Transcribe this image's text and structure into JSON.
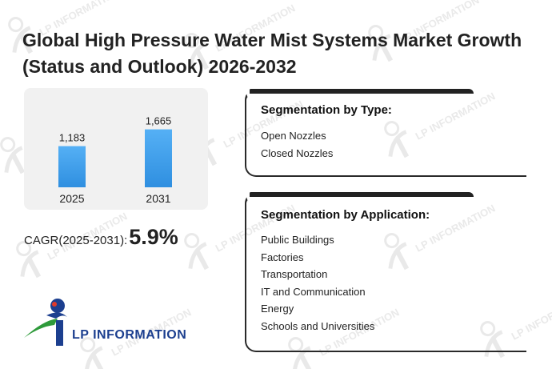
{
  "title": "Global High Pressure Water Mist Systems Market Growth (Status and Outlook) 2026-2032",
  "watermark_text": "LP INFORMATION",
  "chart_data": {
    "type": "bar",
    "categories": [
      "2025",
      "2031"
    ],
    "values": [
      1183,
      1665
    ],
    "value_labels": [
      "1,183",
      "1,665"
    ],
    "title": "",
    "xlabel": "",
    "ylabel": "",
    "ylim": [
      0,
      2300
    ],
    "grid": false,
    "bar_color": "#2f8fe0"
  },
  "cagr": {
    "label": "CAGR(2025-2031):",
    "value": "5.9%"
  },
  "segmentation_type": {
    "title": "Segmentation by Type:",
    "items": [
      "Open Nozzles",
      "Closed Nozzles"
    ]
  },
  "segmentation_application": {
    "title": "Segmentation by Application:",
    "items": [
      "Public Buildings",
      "Factories",
      "Transportation",
      "IT and Communication",
      "Energy",
      "Schools and Universities"
    ]
  },
  "logo": {
    "text": "LP INFORMATION",
    "colors": {
      "blue": "#1c3f8f",
      "green": "#2e9a3a",
      "red": "#e23a2a"
    }
  }
}
